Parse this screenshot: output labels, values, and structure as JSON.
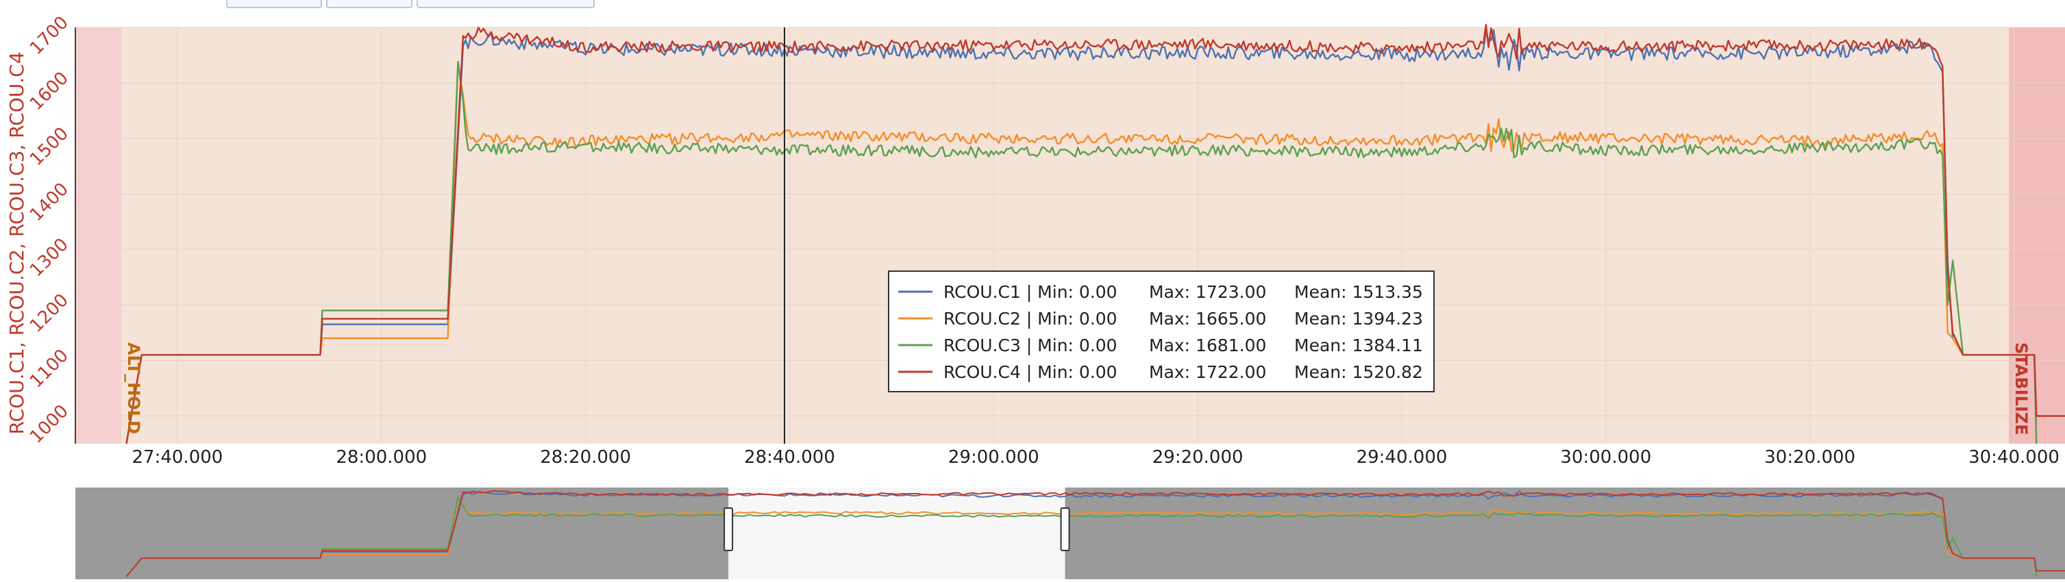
{
  "chart_data": {
    "type": "line",
    "ylabel": "RCOU.C1, RCOU.C2, RCOU.C3, RCOU.C4",
    "ylim": [
      950,
      1700
    ],
    "xlim_seconds": [
      1650,
      1845
    ],
    "y_ticks": [
      1000,
      1100,
      1200,
      1300,
      1400,
      1500,
      1600,
      1700
    ],
    "x_ticks": [
      {
        "t": 1660,
        "label": "27:40.000"
      },
      {
        "t": 1680,
        "label": "28:00.000"
      },
      {
        "t": 1700,
        "label": "28:20.000"
      },
      {
        "t": 1720,
        "label": "28:40.000"
      },
      {
        "t": 1740,
        "label": "29:00.000"
      },
      {
        "t": 1760,
        "label": "29:20.000"
      },
      {
        "t": 1780,
        "label": "29:40.000"
      },
      {
        "t": 1800,
        "label": "30:00.000"
      },
      {
        "t": 1820,
        "label": "30:20.000"
      },
      {
        "t": 1840,
        "label": "30:40.000"
      }
    ],
    "grid": true,
    "cursor_t": 1719.5,
    "mode_regions": [
      {
        "name": "",
        "from": 1650,
        "to": 1654.5,
        "color": "#f6d0d0"
      },
      {
        "name": "ALT_HOLD",
        "from": 1654.5,
        "to": 1839.5,
        "color": "#f5e3d8",
        "label_color": "#c06a10"
      },
      {
        "name": "STABILIZE",
        "from": 1839.5,
        "to": 1845,
        "color": "#f1bcbc",
        "label_color": "#c0392b"
      }
    ],
    "legend": {
      "placement": "center",
      "min_label": "Min:",
      "max_label": "Max:",
      "mean_label": "Mean:",
      "entries": [
        {
          "name": "RCOU.C1",
          "min": "0.00",
          "max": "1723.00",
          "mean": "1513.35"
        },
        {
          "name": "RCOU.C2",
          "min": "0.00",
          "max": "1665.00",
          "mean": "1394.23"
        },
        {
          "name": "RCOU.C3",
          "min": "0.00",
          "max": "1681.00",
          "mean": "1384.11"
        },
        {
          "name": "RCOU.C4",
          "min": "0.00",
          "max": "1722.00",
          "mean": "1520.82"
        }
      ]
    },
    "series": [
      {
        "name": "RCOU.C1",
        "color": "#4c72b0",
        "points": [
          [
            1655,
            950
          ],
          [
            1656.5,
            1110
          ],
          [
            1674,
            1110
          ],
          [
            1674.2,
            1165
          ],
          [
            1686.5,
            1165
          ],
          [
            1688,
            1670
          ],
          [
            1690,
            1680
          ],
          [
            1700,
            1660
          ],
          [
            1720,
            1660
          ],
          [
            1740,
            1652
          ],
          [
            1760,
            1655
          ],
          [
            1780,
            1650
          ],
          [
            1790,
            1655
          ],
          [
            1800,
            1652
          ],
          [
            1820,
            1655
          ],
          [
            1832,
            1665
          ],
          [
            1833,
            1620
          ],
          [
            1833.5,
            1280
          ],
          [
            1834,
            1140
          ],
          [
            1835,
            1110
          ],
          [
            1842,
            1110
          ],
          [
            1842.2,
            950
          ]
        ],
        "noise": 12
      },
      {
        "name": "RCOU.C2",
        "color": "#f28e2b",
        "points": [
          [
            1655,
            950
          ],
          [
            1656.5,
            1110
          ],
          [
            1674,
            1110
          ],
          [
            1674.2,
            1140
          ],
          [
            1686.5,
            1140
          ],
          [
            1687.5,
            1640
          ],
          [
            1688.5,
            1500
          ],
          [
            1700,
            1495
          ],
          [
            1720,
            1505
          ],
          [
            1740,
            1500
          ],
          [
            1760,
            1500
          ],
          [
            1780,
            1495
          ],
          [
            1790,
            1505
          ],
          [
            1800,
            1500
          ],
          [
            1820,
            1495
          ],
          [
            1832,
            1505
          ],
          [
            1833,
            1490
          ],
          [
            1833.5,
            1150
          ],
          [
            1834,
            1140
          ],
          [
            1835,
            1110
          ],
          [
            1842,
            1110
          ],
          [
            1842.2,
            950
          ]
        ],
        "noise": 10
      },
      {
        "name": "RCOU.C3",
        "color": "#59a14f",
        "points": [
          [
            1655,
            950
          ],
          [
            1656.5,
            1110
          ],
          [
            1674,
            1110
          ],
          [
            1674.2,
            1190
          ],
          [
            1686.5,
            1190
          ],
          [
            1687.5,
            1640
          ],
          [
            1688.5,
            1480
          ],
          [
            1700,
            1485
          ],
          [
            1720,
            1480
          ],
          [
            1740,
            1475
          ],
          [
            1760,
            1478
          ],
          [
            1780,
            1475
          ],
          [
            1790,
            1490
          ],
          [
            1800,
            1478
          ],
          [
            1820,
            1482
          ],
          [
            1832,
            1490
          ],
          [
            1833,
            1470
          ],
          [
            1833.5,
            1200
          ],
          [
            1834,
            1280
          ],
          [
            1835,
            1110
          ],
          [
            1842,
            1110
          ],
          [
            1842.2,
            950
          ]
        ],
        "noise": 10
      },
      {
        "name": "RCOU.C4",
        "color": "#c0392b",
        "points": [
          [
            1655,
            950
          ],
          [
            1656.5,
            1110
          ],
          [
            1674,
            1110
          ],
          [
            1674.2,
            1175
          ],
          [
            1686.5,
            1175
          ],
          [
            1688,
            1690
          ],
          [
            1690,
            1690
          ],
          [
            1700,
            1665
          ],
          [
            1720,
            1665
          ],
          [
            1740,
            1668
          ],
          [
            1760,
            1670
          ],
          [
            1780,
            1662
          ],
          [
            1790,
            1670
          ],
          [
            1800,
            1665
          ],
          [
            1820,
            1668
          ],
          [
            1832,
            1670
          ],
          [
            1833,
            1630
          ],
          [
            1833.5,
            1260
          ],
          [
            1834,
            1150
          ],
          [
            1835,
            1110
          ],
          [
            1842,
            1110
          ],
          [
            1842.2,
            1000
          ],
          [
            1845,
            1000
          ]
        ],
        "noise": 10
      }
    ]
  }
}
